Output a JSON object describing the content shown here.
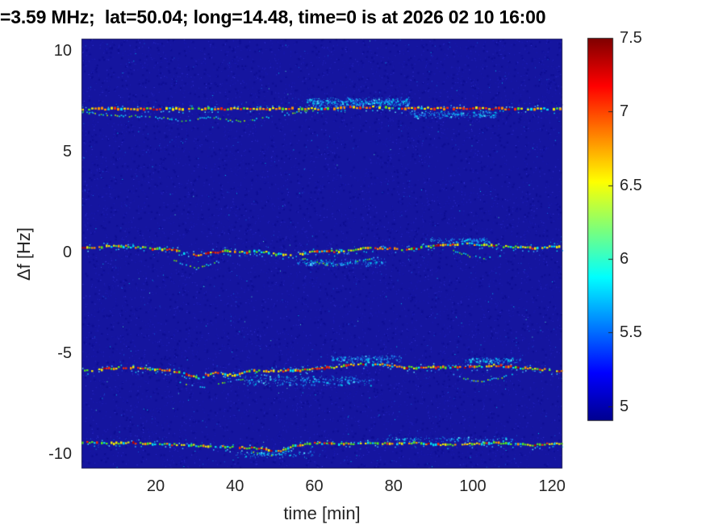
{
  "title": "=3.59 MHz;  lat=50.04; long=14.48, time=0 is at 2026 02 10 16:00",
  "chart_data": {
    "type": "heatmap",
    "title": "=3.59 MHz;  lat=50.04; long=14.48, time=0 is at 2026 02 10 16:00",
    "xlabel": "time [min]",
    "ylabel": "Δf [Hz]",
    "x_ticks": [
      20,
      40,
      60,
      80,
      100,
      120
    ],
    "y_ticks": [
      10,
      5,
      0,
      -5,
      -10
    ],
    "x_range": [
      1.27,
      122.6
    ],
    "y_range": [
      -10.72,
      10.6
    ],
    "grid": false,
    "legend": "none",
    "background_value_color": "#15159f",
    "frame_color": "#262626",
    "colorbar": {
      "ticks": [
        5,
        5.5,
        6,
        6.5,
        7,
        7.5
      ],
      "range": [
        4.9,
        7.5
      ],
      "colormap": "jet",
      "stops": [
        [
          0,
          "#00008f"
        ],
        [
          0.125,
          "#0000ff"
        ],
        [
          0.375,
          "#00ffff"
        ],
        [
          0.5,
          "#7dff7a"
        ],
        [
          0.625,
          "#ffff00"
        ],
        [
          0.875,
          "#ff0000"
        ],
        [
          1,
          "#7f0000"
        ]
      ]
    },
    "noise": {
      "seed": 1337,
      "speckles": [
        [
          "#0e0e92",
          2600,
          2
        ],
        [
          "#1c1cb6",
          4200,
          1
        ],
        [
          "#2828c8",
          2400,
          1
        ],
        [
          "#3a3ae0",
          900,
          1
        ],
        [
          "#1565e0",
          240,
          1
        ],
        [
          "#00c8f0",
          120,
          1
        ],
        [
          "#55e8c8",
          40,
          1
        ]
      ]
    },
    "fringe_colors": [
      "#00d4f0",
      "#38b8ff",
      "#60eaff"
    ],
    "scatter_colors": [
      "#2344d6",
      "#2a62ea",
      "#0b9ae0"
    ],
    "subtrace_palette": [
      [
        "#00d8ee",
        0.45
      ],
      [
        "#49de25",
        0.25
      ],
      [
        "#a8e800",
        0.15
      ],
      [
        "#38a8ff",
        0.15
      ]
    ],
    "cloud_palette": [
      [
        "#1e7ef0",
        0.45
      ],
      [
        "#00c4ee",
        0.35
      ],
      [
        "#58e6ff",
        0.12
      ],
      [
        "#2a3fd0",
        0.08
      ]
    ],
    "traces": [
      {
        "name": "echo-plus-7Hz",
        "step": 4,
        "dash_w": 3,
        "core_h": 2.3,
        "gap_prob": 0.1,
        "fringe_prob": 0.55,
        "scatter_prob": 0.3,
        "jitter": 1.0,
        "palette": [
          [
            "#00dff2",
            0.08
          ],
          [
            "#55e81a",
            0.13
          ],
          [
            "#f2ea00",
            0.3
          ],
          [
            "#ff9500",
            0.25
          ],
          [
            "#fa2a00",
            0.17
          ],
          [
            "#bb0000",
            0.07
          ]
        ],
        "points": [
          [
            1,
            7.12
          ],
          [
            60,
            7.12
          ],
          [
            68,
            7.18
          ],
          [
            75,
            7.2
          ],
          [
            82,
            7.15
          ],
          [
            122.6,
            7.12
          ]
        ]
      },
      {
        "name": "echo-0Hz",
        "step": 3,
        "dash_w": 2.5,
        "core_h": 2.2,
        "gap_prob": 0.12,
        "fringe_prob": 0.5,
        "scatter_prob": 0.28,
        "jitter": 1.2,
        "palette": [
          [
            "#00dff2",
            0.14
          ],
          [
            "#55e81a",
            0.2
          ],
          [
            "#f2ea00",
            0.26
          ],
          [
            "#ff9500",
            0.2
          ],
          [
            "#fa2a00",
            0.14
          ],
          [
            "#bb0000",
            0.06
          ]
        ],
        "points": [
          [
            1,
            0.2
          ],
          [
            6,
            0.28
          ],
          [
            12,
            0.3
          ],
          [
            18,
            0.2
          ],
          [
            24,
            0.12
          ],
          [
            28,
            -0.1
          ],
          [
            31,
            -0.18
          ],
          [
            34,
            0.0
          ],
          [
            38,
            0.08
          ],
          [
            42,
            -0.02
          ],
          [
            46,
            0.05
          ],
          [
            50,
            -0.08
          ],
          [
            54,
            -0.12
          ],
          [
            58,
            -0.02
          ],
          [
            62,
            0.08
          ],
          [
            66,
            0.05
          ],
          [
            70,
            0.12
          ],
          [
            74,
            0.22
          ],
          [
            78,
            0.18
          ],
          [
            82,
            0.12
          ],
          [
            86,
            0.2
          ],
          [
            90,
            0.3
          ],
          [
            94,
            0.38
          ],
          [
            98,
            0.42
          ],
          [
            102,
            0.38
          ],
          [
            106,
            0.3
          ],
          [
            110,
            0.28
          ],
          [
            114,
            0.22
          ],
          [
            118,
            0.25
          ],
          [
            122.6,
            0.28
          ]
        ]
      },
      {
        "name": "echo-minus-6Hz",
        "step": 3,
        "dash_w": 2.5,
        "core_h": 2.2,
        "gap_prob": 0.12,
        "fringe_prob": 0.55,
        "scatter_prob": 0.32,
        "jitter": 1.2,
        "palette": [
          [
            "#00dff2",
            0.12
          ],
          [
            "#55e81a",
            0.18
          ],
          [
            "#f2ea00",
            0.24
          ],
          [
            "#ff9500",
            0.22
          ],
          [
            "#fa2a00",
            0.17
          ],
          [
            "#bb0000",
            0.07
          ]
        ],
        "points": [
          [
            1,
            -5.92
          ],
          [
            5,
            -5.82
          ],
          [
            10,
            -5.72
          ],
          [
            15,
            -5.72
          ],
          [
            20,
            -5.8
          ],
          [
            24,
            -5.88
          ],
          [
            27,
            -6.02
          ],
          [
            29,
            -6.18
          ],
          [
            31,
            -6.22
          ],
          [
            33,
            -6.05
          ],
          [
            35,
            -5.95
          ],
          [
            37,
            -6.02
          ],
          [
            39,
            -6.1
          ],
          [
            41,
            -6.0
          ],
          [
            44,
            -5.88
          ],
          [
            48,
            -5.92
          ],
          [
            52,
            -5.88
          ],
          [
            56,
            -5.85
          ],
          [
            60,
            -5.78
          ],
          [
            64,
            -5.72
          ],
          [
            68,
            -5.6
          ],
          [
            72,
            -5.52
          ],
          [
            76,
            -5.55
          ],
          [
            80,
            -5.65
          ],
          [
            84,
            -5.72
          ],
          [
            88,
            -5.68
          ],
          [
            92,
            -5.72
          ],
          [
            96,
            -5.72
          ],
          [
            100,
            -5.68
          ],
          [
            104,
            -5.6
          ],
          [
            108,
            -5.65
          ],
          [
            112,
            -5.72
          ],
          [
            116,
            -5.78
          ],
          [
            120,
            -5.85
          ],
          [
            122.6,
            -5.88
          ]
        ]
      },
      {
        "name": "echo-minus-9.5Hz",
        "step": 3,
        "dash_w": 2.5,
        "core_h": 2.1,
        "gap_prob": 0.14,
        "fringe_prob": 0.45,
        "scatter_prob": 0.22,
        "jitter": 1.0,
        "palette": [
          [
            "#00dff2",
            0.2
          ],
          [
            "#55e81a",
            0.3
          ],
          [
            "#f2ea00",
            0.28
          ],
          [
            "#ff9500",
            0.12
          ],
          [
            "#fa2a00",
            0.08
          ],
          [
            "#bb0000",
            0.02
          ]
        ],
        "points": [
          [
            1,
            -9.42
          ],
          [
            8,
            -9.48
          ],
          [
            14,
            -9.45
          ],
          [
            20,
            -9.5
          ],
          [
            26,
            -9.55
          ],
          [
            32,
            -9.6
          ],
          [
            38,
            -9.65
          ],
          [
            43,
            -9.7
          ],
          [
            47,
            -9.75
          ],
          [
            50,
            -9.85
          ],
          [
            52,
            -9.82
          ],
          [
            54,
            -9.65
          ],
          [
            57,
            -9.52
          ],
          [
            60,
            -9.45
          ],
          [
            65,
            -9.5
          ],
          [
            70,
            -9.48
          ],
          [
            75,
            -9.45
          ],
          [
            80,
            -9.5
          ],
          [
            85,
            -9.45
          ],
          [
            90,
            -9.52
          ],
          [
            95,
            -9.55
          ],
          [
            100,
            -9.5
          ],
          [
            105,
            -9.45
          ],
          [
            110,
            -9.5
          ],
          [
            115,
            -9.55
          ],
          [
            119,
            -9.5
          ],
          [
            122.6,
            -9.52
          ]
        ]
      }
    ],
    "subtraces": [
      {
        "name": "sub-plus7-dip",
        "points": [
          [
            1,
            7.0
          ],
          [
            5,
            6.9
          ],
          [
            10,
            6.82
          ],
          [
            15,
            6.78
          ],
          [
            20,
            6.72
          ],
          [
            25,
            6.6
          ],
          [
            28,
            6.55
          ],
          [
            31,
            6.68
          ],
          [
            34,
            6.75
          ],
          [
            37,
            6.62
          ],
          [
            40,
            6.55
          ],
          [
            44,
            6.6
          ],
          [
            48,
            6.72
          ],
          [
            52,
            6.85
          ],
          [
            56,
            6.98
          ],
          [
            60,
            7.08
          ]
        ]
      },
      {
        "name": "sub-0-dip-left",
        "points": [
          [
            24,
            -0.35
          ],
          [
            27,
            -0.6
          ],
          [
            30,
            -0.78
          ],
          [
            33,
            -0.6
          ],
          [
            36,
            -0.4
          ]
        ]
      },
      {
        "name": "sub-0-dip-mid",
        "points": [
          [
            56,
            -0.2
          ],
          [
            60,
            -0.45
          ],
          [
            64,
            -0.6
          ],
          [
            68,
            -0.55
          ],
          [
            72,
            -0.35
          ],
          [
            76,
            -0.2
          ]
        ]
      },
      {
        "name": "sub-0-dip-right",
        "points": [
          [
            95,
            0.1
          ],
          [
            99,
            -0.15
          ],
          [
            103,
            -0.25
          ],
          [
            107,
            -0.1
          ]
        ]
      },
      {
        "name": "sub-minus6-dip",
        "points": [
          [
            25,
            -6.3
          ],
          [
            28,
            -6.55
          ],
          [
            31,
            -6.68
          ],
          [
            34,
            -6.55
          ],
          [
            37,
            -6.4
          ],
          [
            40,
            -6.3
          ],
          [
            43,
            -6.2
          ]
        ]
      },
      {
        "name": "sub-minus6-right",
        "points": [
          [
            94,
            -6.0
          ],
          [
            98,
            -6.25
          ],
          [
            102,
            -6.35
          ],
          [
            106,
            -6.2
          ],
          [
            110,
            -6.05
          ]
        ]
      },
      {
        "name": "sub-minus95-dip",
        "points": [
          [
            44,
            -9.9
          ],
          [
            48,
            -10.02
          ],
          [
            52,
            -9.95
          ]
        ]
      }
    ],
    "clouds": [
      {
        "name": "cloud-above-plus7",
        "t0": 58,
        "t1": 84,
        "f": 7.45,
        "spread": 0.28,
        "count": 420
      },
      {
        "name": "cloud-below-plus7",
        "t0": 84,
        "t1": 106,
        "f": 6.85,
        "spread": 0.22,
        "count": 200
      },
      {
        "name": "cloud-below-0",
        "t0": 55,
        "t1": 78,
        "f": -0.5,
        "spread": 0.25,
        "count": 150
      },
      {
        "name": "cloud-above-0-right",
        "t0": 88,
        "t1": 104,
        "f": 0.62,
        "spread": 0.15,
        "count": 110
      },
      {
        "name": "cloud-below-minus6",
        "t0": 42,
        "t1": 75,
        "f": -6.35,
        "spread": 0.3,
        "count": 260
      },
      {
        "name": "cloud-above-minus6",
        "t0": 64,
        "t1": 82,
        "f": -5.28,
        "spread": 0.2,
        "count": 190
      },
      {
        "name": "cloud-above-minus6-right",
        "t0": 98,
        "t1": 112,
        "f": -5.35,
        "spread": 0.18,
        "count": 110
      },
      {
        "name": "cloud-below-minus95",
        "t0": 40,
        "t1": 60,
        "f": -10.0,
        "spread": 0.2,
        "count": 90
      },
      {
        "name": "cloud-above-minus95",
        "t0": 78,
        "t1": 110,
        "f": -9.25,
        "spread": 0.15,
        "count": 110
      }
    ]
  }
}
